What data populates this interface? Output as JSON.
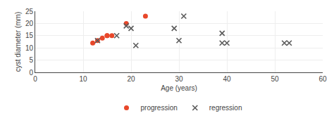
{
  "chart_data": {
    "type": "scatter",
    "xlabel": "Age (years)",
    "ylabel": "cyst diameter (mm)",
    "xlim": [
      0,
      60
    ],
    "ylim": [
      0,
      25
    ],
    "xticks": [
      0,
      10,
      20,
      30,
      40,
      50,
      60
    ],
    "yticks": [
      0,
      5,
      10,
      15,
      20,
      25
    ],
    "grid": true,
    "legend": "bottom",
    "series": [
      {
        "name": "progression",
        "color": "#e8472a",
        "marker": "circle",
        "x": [
          12,
          13,
          14,
          15,
          15,
          16,
          19,
          23
        ],
        "values": [
          12,
          13,
          14,
          15,
          15,
          15,
          20,
          23
        ]
      },
      {
        "name": "regression",
        "color": "#5a5a5a",
        "marker": "x",
        "x": [
          13,
          17,
          19,
          20,
          21,
          29,
          30,
          31,
          39,
          39,
          40,
          52,
          53
        ],
        "values": [
          13,
          15,
          19,
          18,
          11,
          18,
          13,
          23,
          16,
          12,
          12,
          12,
          12
        ]
      }
    ]
  }
}
